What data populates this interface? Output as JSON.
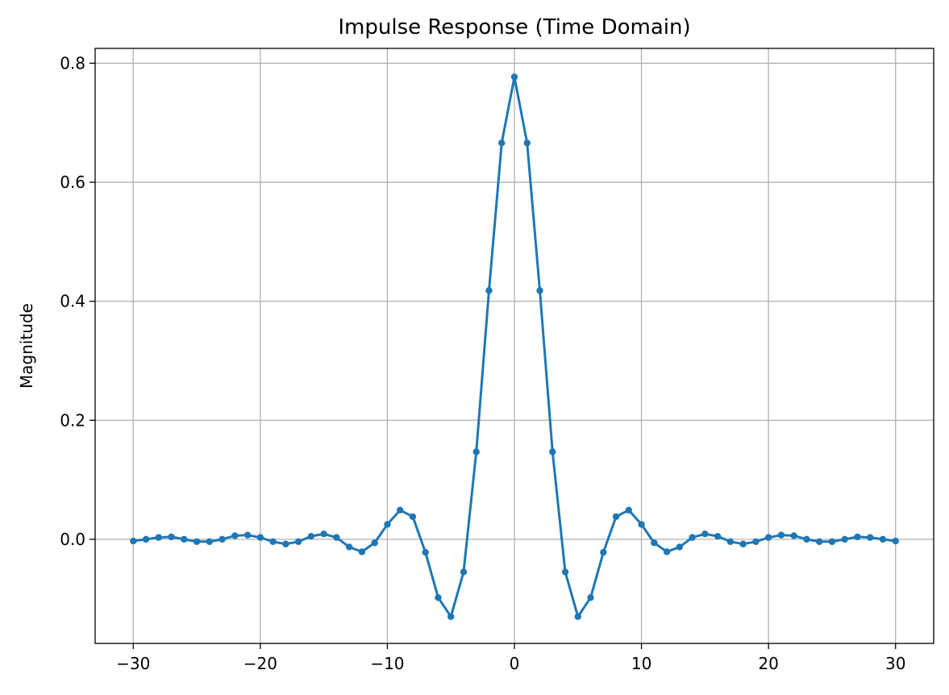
{
  "chart_data": {
    "type": "line",
    "title": "Impulse Response (Time Domain)",
    "xlabel": "",
    "ylabel": "Magnitude",
    "xlim": [
      -33,
      33
    ],
    "ylim": [
      -0.175,
      0.825
    ],
    "grid": true,
    "line_color": "#1f77b4",
    "marker": "circle",
    "x_ticks": [
      -30,
      -20,
      -10,
      0,
      10,
      20,
      30
    ],
    "x_tick_labels": [
      "−30",
      "−20",
      "−10",
      "0",
      "10",
      "20",
      "30"
    ],
    "y_ticks": [
      0.0,
      0.2,
      0.4,
      0.6,
      0.8
    ],
    "y_tick_labels": [
      "0.0",
      "0.2",
      "0.4",
      "0.6",
      "0.8"
    ],
    "series": [
      {
        "x": [
          -30,
          -29,
          -28,
          -27,
          -26,
          -25,
          -24,
          -23,
          -22,
          -21,
          -20,
          -19,
          -18,
          -17,
          -16,
          -15,
          -14,
          -13,
          -12,
          -11,
          -10,
          -9,
          -8,
          -7,
          -6,
          -5,
          -4,
          -3,
          -2,
          -1,
          0,
          1,
          2,
          3,
          4,
          5,
          6,
          7,
          8,
          9,
          10,
          11,
          12,
          13,
          14,
          15,
          16,
          17,
          18,
          19,
          20,
          21,
          22,
          23,
          24,
          25,
          26,
          27,
          28,
          29,
          30
        ],
        "values": [
          -0.003,
          0.0,
          0.003,
          0.004,
          0.0,
          -0.004,
          -0.004,
          0.0,
          0.006,
          0.007,
          0.003,
          -0.004,
          -0.008,
          -0.004,
          0.005,
          0.009,
          0.003,
          -0.013,
          -0.021,
          -0.006,
          0.025,
          0.049,
          0.038,
          -0.022,
          -0.098,
          -0.13,
          -0.055,
          0.147,
          0.418,
          0.666,
          0.777,
          0.666,
          0.418,
          0.147,
          -0.055,
          -0.13,
          -0.098,
          -0.022,
          0.038,
          0.049,
          0.025,
          -0.006,
          -0.021,
          -0.013,
          0.003,
          0.009,
          0.005,
          -0.004,
          -0.008,
          -0.004,
          0.003,
          0.007,
          0.006,
          0.0,
          -0.004,
          -0.004,
          0.0,
          0.004,
          0.003,
          0.0,
          -0.003
        ]
      }
    ]
  }
}
